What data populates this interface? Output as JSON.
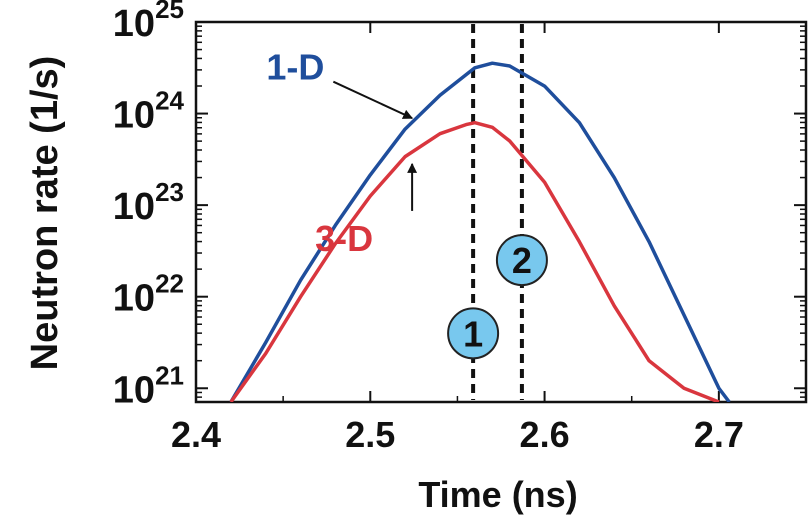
{
  "chart_data": {
    "type": "line",
    "xlabel": "Time (ns)",
    "ylabel": "Neutron rate (1/s)",
    "xlim": [
      2.4,
      2.75
    ],
    "ylim_log10": [
      20.85,
      25.0
    ],
    "yscale": "log",
    "grid": false,
    "x_ticks": [
      {
        "value": 2.4,
        "label": "2.4"
      },
      {
        "value": 2.5,
        "label": "2.5"
      },
      {
        "value": 2.6,
        "label": "2.6"
      },
      {
        "value": 2.7,
        "label": "2.7"
      }
    ],
    "y_ticks": [
      {
        "exp": 21,
        "base": "10",
        "sup": "21"
      },
      {
        "exp": 22,
        "base": "10",
        "sup": "22"
      },
      {
        "exp": 23,
        "base": "10",
        "sup": "23"
      },
      {
        "exp": 24,
        "base": "10",
        "sup": "24"
      },
      {
        "exp": 25,
        "base": "10",
        "sup": "25"
      }
    ],
    "series": [
      {
        "name": "1-D",
        "color": "#1f4e9c",
        "x": [
          2.42,
          2.44,
          2.46,
          2.48,
          2.5,
          2.52,
          2.54,
          2.56,
          2.57,
          2.58,
          2.6,
          2.62,
          2.64,
          2.66,
          2.68,
          2.7,
          2.706
        ],
        "log10": [
          20.85,
          21.5,
          22.18,
          22.78,
          23.33,
          23.83,
          24.2,
          24.5,
          24.55,
          24.52,
          24.3,
          23.9,
          23.3,
          22.6,
          21.8,
          21.0,
          20.85
        ]
      },
      {
        "name": "3-D",
        "color": "#d9363e",
        "x": [
          2.42,
          2.44,
          2.46,
          2.48,
          2.5,
          2.52,
          2.54,
          2.555,
          2.56,
          2.57,
          2.58,
          2.6,
          2.62,
          2.64,
          2.66,
          2.68,
          2.7
        ],
        "log10": [
          20.85,
          21.38,
          22.0,
          22.58,
          23.1,
          23.53,
          23.78,
          23.88,
          23.9,
          23.85,
          23.7,
          23.25,
          22.6,
          21.9,
          21.3,
          21.0,
          20.85
        ]
      }
    ],
    "reference_lines": [
      {
        "x": 2.559,
        "marker": "1",
        "marker_log10": 21.6
      },
      {
        "x": 2.587,
        "marker": "2",
        "marker_log10": 22.4
      }
    ],
    "annotations": [
      {
        "text": "1-D",
        "series": "1-D",
        "text_x": 2.457,
        "text_log10": 24.37,
        "point_x": 2.524,
        "point_log10": 23.95
      },
      {
        "text": "3-D",
        "series": "3-D",
        "text_x": 2.485,
        "text_log10": 22.5,
        "point_x": 2.524,
        "point_log10": 23.45
      }
    ],
    "colors": {
      "marker_fill": "#78c8ee",
      "axis": "#111111"
    }
  }
}
